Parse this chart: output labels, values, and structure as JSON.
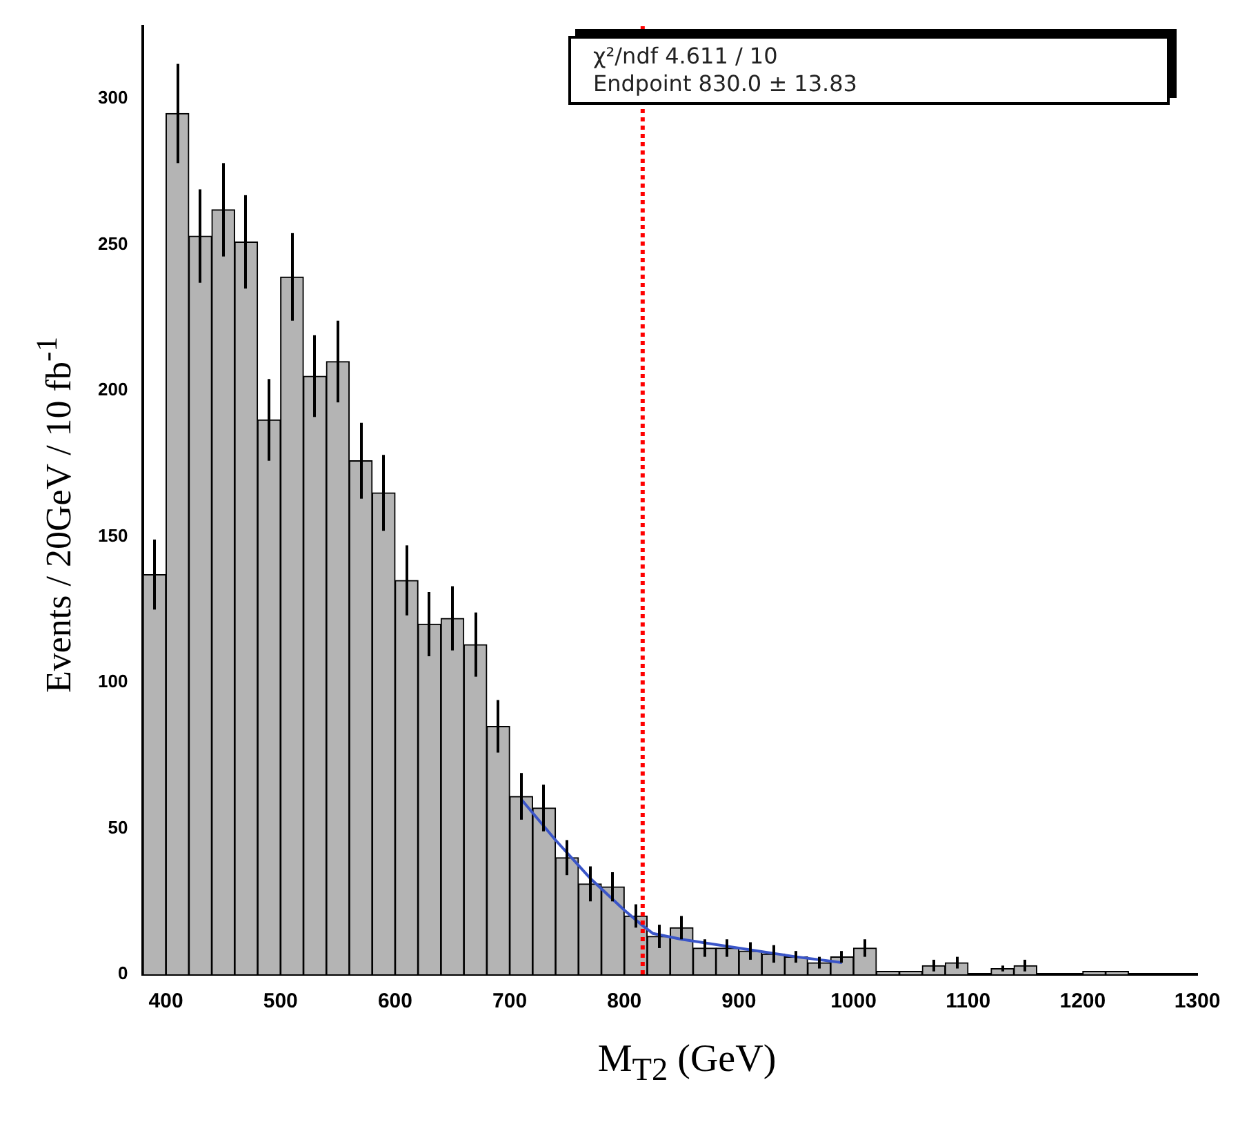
{
  "chart_data": {
    "type": "histogram",
    "xlabel": "M$_{T2}$  (GeV)",
    "ylabel": "Events / 20GeV / 10 fb$^{-1}$",
    "bins": [
      380,
      400,
      420,
      440,
      460,
      480,
      500,
      520,
      540,
      560,
      580,
      600,
      620,
      640,
      660,
      680,
      700,
      720,
      740,
      760,
      780,
      800,
      820,
      840,
      860,
      880,
      900,
      920,
      940,
      960,
      980,
      1000,
      1020,
      1040,
      1060,
      1080,
      1100,
      1120,
      1140,
      1160,
      1180,
      1200,
      1220,
      1240,
      1260,
      1280,
      1300
    ],
    "values": [
      137,
      295,
      253,
      262,
      251,
      190,
      239,
      205,
      210,
      176,
      165,
      135,
      120,
      122,
      113,
      85,
      61,
      57,
      40,
      31,
      30,
      20,
      13,
      16,
      9,
      9,
      8,
      7,
      6,
      4,
      6,
      9,
      1,
      1,
      3,
      4,
      0,
      2,
      3,
      0,
      0,
      1,
      1,
      0,
      0,
      0
    ],
    "errors": [
      12,
      17,
      16,
      16,
      16,
      14,
      15,
      14,
      14,
      13,
      13,
      12,
      11,
      11,
      11,
      9,
      8,
      8,
      6,
      6,
      5,
      4,
      4,
      4,
      3,
      3,
      3,
      3,
      2,
      2,
      2,
      3,
      null,
      null,
      2,
      2,
      null,
      1,
      2,
      null,
      null,
      null,
      null,
      null,
      null,
      null
    ],
    "color": "#b4b4b4",
    "series": [
      {
        "type": "line",
        "x": [
          710,
          740,
          770,
          800,
          815,
          825,
          850,
          900,
          950,
          990
        ],
        "values": [
          60,
          46,
          33,
          22,
          17,
          14,
          12,
          9,
          6,
          4
        ],
        "color": "#3a55c8",
        "marker": "none"
      }
    ],
    "ref_lines": [
      {
        "axis": "x",
        "value": 816,
        "color": "#ff0000",
        "line_style": "dotted"
      }
    ],
    "annotations": [
      "χ²/ndf 4.611 / 10",
      "Endpoint 830.0 ± 13.83"
    ],
    "xlim": [
      380,
      1300
    ],
    "xticks": [
      400,
      500,
      600,
      700,
      800,
      900,
      1000,
      1100,
      1200,
      1300
    ],
    "ylim": [
      0,
      325
    ],
    "yticks": [
      0,
      50,
      100,
      150,
      200,
      250,
      300
    ],
    "grid": false,
    "legend": false
  }
}
